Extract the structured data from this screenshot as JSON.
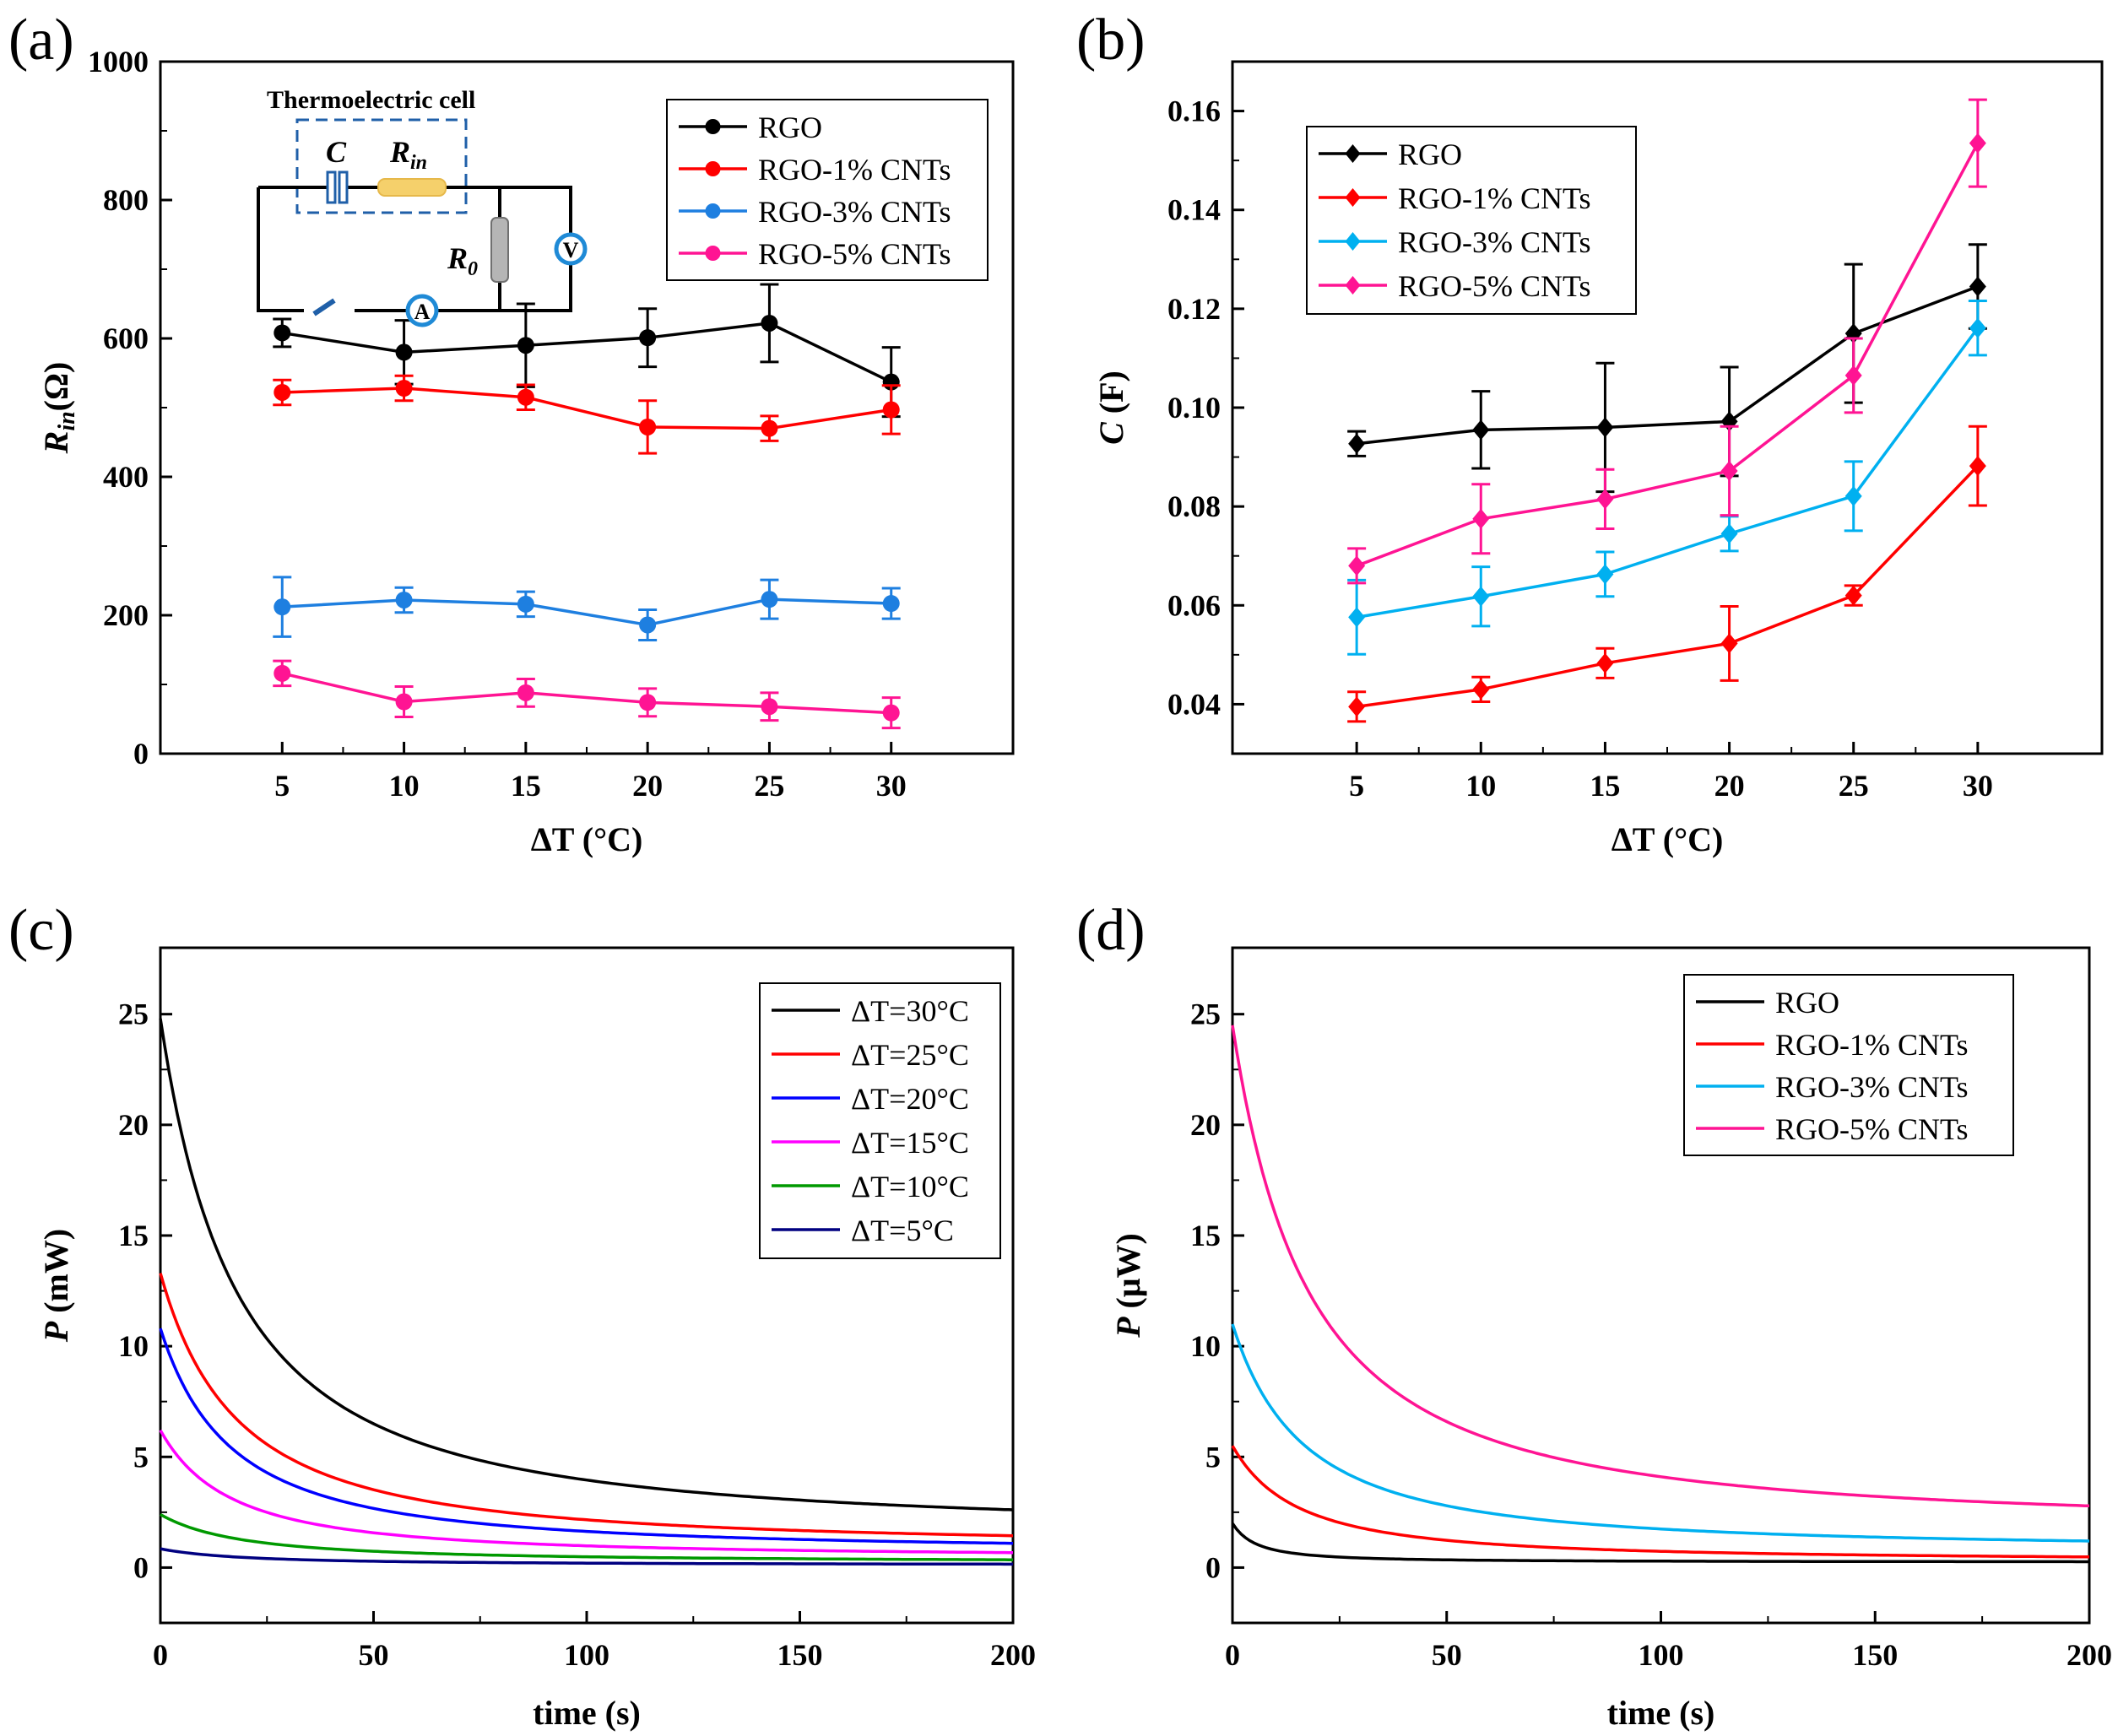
{
  "chart_data": [
    {
      "panel": "(a)",
      "type": "line",
      "xlabel": "ΔT (°C)",
      "ylabel": "R",
      "ylabel_sub": "in",
      "ylabel_unit": "(Ω)",
      "xlim": [
        0,
        35
      ],
      "ylim": [
        0,
        1000
      ],
      "xticks": [
        5,
        10,
        15,
        20,
        25,
        30
      ],
      "yticks": [
        0,
        200,
        400,
        600,
        800,
        1000
      ],
      "x": [
        5,
        10,
        15,
        20,
        25,
        30
      ],
      "marker": "circle",
      "series": [
        {
          "name": "RGO",
          "color": "#000000",
          "values": [
            608,
            580,
            590,
            601,
            622,
            537
          ],
          "errors": [
            20,
            46,
            60,
            42,
            56,
            50
          ]
        },
        {
          "name": "RGO-1% CNTs",
          "color": "#ff0000",
          "values": [
            522,
            528,
            515,
            472,
            470,
            497
          ],
          "errors": [
            18,
            18,
            18,
            38,
            18,
            35
          ]
        },
        {
          "name": "RGO-3% CNTs",
          "color": "#1e7fe0",
          "values": [
            212,
            222,
            216,
            186,
            223,
            217
          ],
          "errors": [
            43,
            18,
            18,
            22,
            28,
            22
          ]
        },
        {
          "name": "RGO-5% CNTs",
          "color": "#ff1493",
          "values": [
            116,
            75,
            88,
            74,
            68,
            59
          ],
          "errors": [
            18,
            22,
            20,
            20,
            20,
            22
          ]
        }
      ],
      "inset": {
        "title": "Thermoelectric cell",
        "c_label": "C",
        "rin_label": "R",
        "rin_sub": "in",
        "r0_label": "R",
        "r0_sub": "0",
        "voltmeter": "V",
        "ammeter": "A"
      }
    },
    {
      "panel": "(b)",
      "type": "line",
      "xlabel": "ΔT (°C)",
      "ylabel": "C",
      "ylabel_unit": "(F)",
      "xlim": [
        0,
        35
      ],
      "ylim": [
        0.03,
        0.17
      ],
      "xticks": [
        5,
        10,
        15,
        20,
        25,
        30
      ],
      "yticks": [
        "0.04",
        "0.06",
        "0.08",
        "0.10",
        "0.12",
        "0.14",
        "0.16"
      ],
      "x": [
        5,
        10,
        15,
        20,
        25,
        30
      ],
      "marker": "diamond",
      "series": [
        {
          "name": "RGO",
          "color": "#000000",
          "values": [
            0.0927,
            0.0955,
            0.096,
            0.0972,
            0.115,
            0.1245
          ],
          "errors": [
            0.0025,
            0.0078,
            0.013,
            0.011,
            0.014,
            0.0085
          ]
        },
        {
          "name": "RGO-1% CNTs",
          "color": "#ff0000",
          "values": [
            0.0395,
            0.043,
            0.0483,
            0.0523,
            0.062,
            0.0882
          ],
          "errors": [
            0.003,
            0.0025,
            0.003,
            0.0075,
            0.002,
            0.008
          ]
        },
        {
          "name": "RGO-3% CNTs",
          "color": "#00b0f0",
          "values": [
            0.0576,
            0.0618,
            0.0663,
            0.0745,
            0.0821,
            0.1161
          ],
          "errors": [
            0.0075,
            0.006,
            0.0045,
            0.0035,
            0.007,
            0.0055
          ]
        },
        {
          "name": "RGO-5% CNTs",
          "color": "#ff1493",
          "values": [
            0.068,
            0.0775,
            0.0815,
            0.0872,
            0.1065,
            0.1535
          ],
          "errors": [
            0.0035,
            0.007,
            0.006,
            0.009,
            0.0075,
            0.0088
          ]
        }
      ]
    },
    {
      "panel": "(c)",
      "type": "line",
      "xlabel": "time (s)",
      "ylabel": "P",
      "ylabel_unit": "(mW)",
      "xlim": [
        0,
        200
      ],
      "ylim": [
        -2.5,
        28
      ],
      "xticks": [
        0,
        50,
        100,
        150,
        200
      ],
      "yticks": [
        0,
        5,
        10,
        15,
        20,
        25
      ],
      "series": [
        {
          "name": "ΔT=30°C",
          "color": "#000000",
          "p0": 24.8,
          "tau": 26,
          "floor": 1.6
        },
        {
          "name": "ΔT=25°C",
          "color": "#ff0000",
          "p0": 13.3,
          "tau": 26,
          "floor": 0.9
        },
        {
          "name": "ΔT=20°C",
          "color": "#0000ff",
          "p0": 10.8,
          "tau": 24,
          "floor": 0.7
        },
        {
          "name": "ΔT=15°C",
          "color": "#ff00ff",
          "p0": 6.2,
          "tau": 24,
          "floor": 0.45
        },
        {
          "name": "ΔT=10°C",
          "color": "#009900",
          "p0": 2.4,
          "tau": 28,
          "floor": 0.25
        },
        {
          "name": "ΔT=5°C",
          "color": "#000080",
          "p0": 0.85,
          "tau": 28,
          "floor": 0.12
        }
      ]
    },
    {
      "panel": "(d)",
      "type": "line",
      "xlabel": "time (s)",
      "ylabel": "P",
      "ylabel_unit": "(μW)",
      "xlim": [
        0,
        200
      ],
      "ylim": [
        -2.5,
        28
      ],
      "xticks": [
        0,
        50,
        100,
        150,
        200
      ],
      "yticks": [
        0,
        5,
        10,
        15,
        20,
        25
      ],
      "series": [
        {
          "name": "RGO",
          "color": "#000000",
          "p0": 2.0,
          "tau": 8,
          "floor": 0.25
        },
        {
          "name": "RGO-1% CNTs",
          "color": "#ff0000",
          "p0": 5.5,
          "tau": 22,
          "floor": 0.3
        },
        {
          "name": "RGO-3% CNTs",
          "color": "#00b0f0",
          "p0": 11.0,
          "tau": 24,
          "floor": 0.8
        },
        {
          "name": "RGO-5% CNTs",
          "color": "#ff1493",
          "p0": 24.5,
          "tau": 26,
          "floor": 1.8
        }
      ]
    }
  ]
}
